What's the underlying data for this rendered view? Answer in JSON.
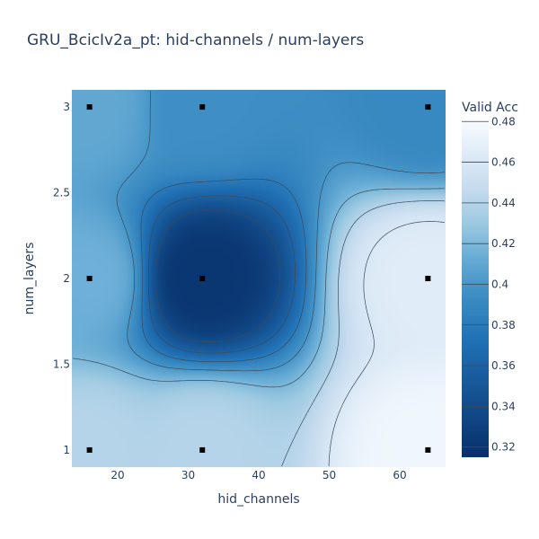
{
  "chart_data": {
    "type": "heatmap",
    "title": "GRU_BcicIv2a_pt: hid-channels / num-layers",
    "xlabel": "hid_channels",
    "ylabel": "num_layers",
    "colorbar_title": "Valid Acc",
    "colorscale": "Blues",
    "xlim": [
      13.5,
      66.5
    ],
    "ylim": [
      0.9,
      3.1
    ],
    "x_ticks": [
      20,
      30,
      40,
      50,
      60
    ],
    "x_tick_labels": [
      "20",
      "30",
      "40",
      "50",
      "60"
    ],
    "y_ticks": [
      1,
      1.5,
      2,
      2.5,
      3
    ],
    "y_tick_labels": [
      "1",
      "1.5",
      "2",
      "2.5",
      "3"
    ],
    "color_range": [
      0.315,
      0.48
    ],
    "colorbar_ticks": [
      0.32,
      0.34,
      0.36,
      0.38,
      0.4,
      0.42,
      0.44,
      0.46,
      0.48
    ],
    "colorbar_tick_labels": [
      "0.32",
      "0.34",
      "0.36",
      "0.38",
      "0.4",
      "0.42",
      "0.44",
      "0.46",
      "0.48"
    ],
    "contour_levels": [
      0.32,
      0.34,
      0.36,
      0.38,
      0.4,
      0.42,
      0.44,
      0.46
    ],
    "points": [
      {
        "x": 16,
        "y": 3,
        "z": 0.41
      },
      {
        "x": 32,
        "y": 3,
        "z": 0.395
      },
      {
        "x": 64,
        "y": 3,
        "z": 0.39
      },
      {
        "x": 16,
        "y": 2,
        "z": 0.415
      },
      {
        "x": 32,
        "y": 2,
        "z": 0.32
      },
      {
        "x": 64,
        "y": 2,
        "z": 0.465
      },
      {
        "x": 16,
        "y": 1,
        "z": 0.44
      },
      {
        "x": 32,
        "y": 1,
        "z": 0.44
      },
      {
        "x": 64,
        "y": 1,
        "z": 0.475
      }
    ]
  }
}
